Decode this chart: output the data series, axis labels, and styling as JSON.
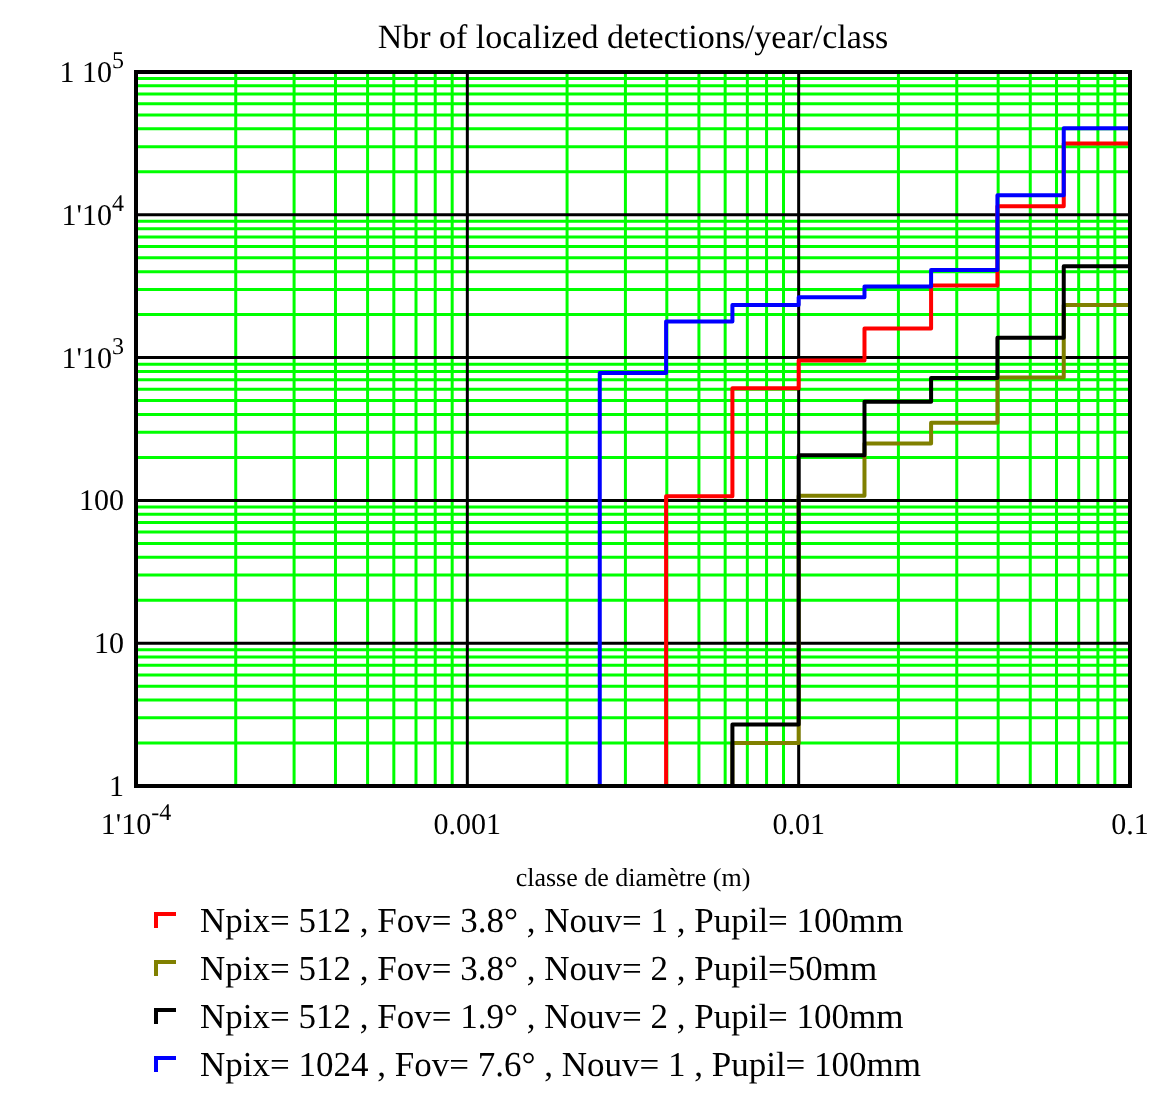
{
  "chart_data": {
    "type": "step",
    "title": "Nbr of localized detections/year/class",
    "xlabel": "classe de diamètre (m)",
    "log": "xy",
    "grid": true,
    "legend": "bottom",
    "line_style": "solid",
    "marker": "none",
    "xlim": [
      0.0001,
      0.1
    ],
    "ylim": [
      1,
      100000
    ],
    "xticks": [
      {
        "value": 0.0001,
        "label": "1'10$^{-4}$"
      },
      {
        "value": 0.0002,
        "label": null
      },
      {
        "value": 0.0003,
        "label": null
      },
      {
        "value": 0.0004,
        "label": null
      },
      {
        "value": 0.0005,
        "label": null
      },
      {
        "value": 0.0006,
        "label": null
      },
      {
        "value": 0.0007,
        "label": null
      },
      {
        "value": 0.0008,
        "label": null
      },
      {
        "value": 0.0009,
        "label": null
      },
      0.001,
      {
        "value": 0.002,
        "label": null
      },
      {
        "value": 0.003,
        "label": null
      },
      {
        "value": 0.004,
        "label": null
      },
      {
        "value": 0.005,
        "label": null
      },
      {
        "value": 0.006,
        "label": null
      },
      {
        "value": 0.007,
        "label": null
      },
      {
        "value": 0.008,
        "label": null
      },
      {
        "value": 0.009,
        "label": null
      },
      0.01,
      {
        "value": 0.02,
        "label": null
      },
      {
        "value": 0.03,
        "label": null
      },
      {
        "value": 0.04,
        "label": null
      },
      {
        "value": 0.05,
        "label": null
      },
      {
        "value": 0.06,
        "label": null
      },
      {
        "value": 0.07,
        "label": null
      },
      {
        "value": 0.08,
        "label": null
      },
      {
        "value": 0.09,
        "label": null
      },
      0.1
    ],
    "yticks": [
      1,
      {
        "value": 2,
        "label": null
      },
      {
        "value": 3,
        "label": null
      },
      {
        "value": 4,
        "label": null
      },
      {
        "value": 5,
        "label": null
      },
      {
        "value": 6,
        "label": null
      },
      {
        "value": 7,
        "label": null
      },
      {
        "value": 8,
        "label": null
      },
      {
        "value": 9,
        "label": null
      },
      10,
      {
        "value": 20,
        "label": null
      },
      {
        "value": 30,
        "label": null
      },
      {
        "value": 40,
        "label": null
      },
      {
        "value": 50,
        "label": null
      },
      {
        "value": 60,
        "label": null
      },
      {
        "value": 70,
        "label": null
      },
      {
        "value": 80,
        "label": null
      },
      {
        "value": 90,
        "label": null
      },
      100,
      {
        "value": 200,
        "label": null
      },
      {
        "value": 300,
        "label": null
      },
      {
        "value": 400,
        "label": null
      },
      {
        "value": 500,
        "label": null
      },
      {
        "value": 600,
        "label": null
      },
      {
        "value": 700,
        "label": null
      },
      {
        "value": 800,
        "label": null
      },
      {
        "value": 900,
        "label": null
      },
      {
        "value": 1000,
        "label": "1'10$^{3}$"
      },
      {
        "value": 2000,
        "label": null
      },
      {
        "value": 3000,
        "label": null
      },
      {
        "value": 4000,
        "label": null
      },
      {
        "value": 5000,
        "label": null
      },
      {
        "value": 6000,
        "label": null
      },
      {
        "value": 7000,
        "label": null
      },
      {
        "value": 8000,
        "label": null
      },
      {
        "value": 9000,
        "label": null
      },
      {
        "value": 10000,
        "label": "1'10$^{4}$"
      },
      {
        "value": 20000,
        "label": null
      },
      {
        "value": 30000,
        "label": null
      },
      {
        "value": 40000,
        "label": null
      },
      {
        "value": 50000,
        "label": null
      },
      {
        "value": 60000,
        "label": null
      },
      {
        "value": 70000,
        "label": null
      },
      {
        "value": 80000,
        "label": null
      },
      {
        "value": 90000,
        "label": null
      },
      {
        "value": 100000,
        "label": "1 10$^{5}$"
      }
    ],
    "series": [
      {
        "name": "Npix= 512 , Fov= 3.8° , Nouv= 1 , Pupil= 100mm",
        "color": "#ff0000",
        "x": [
          0.00398,
          0.00398,
          0.00631,
          0.01,
          0.0158,
          0.0251,
          0.0398,
          0.0631,
          0.1
        ],
        "values": [
          1,
          107,
          610,
          955,
          1600,
          3200,
          11500,
          31600,
          31600
        ]
      },
      {
        "name": "Npix= 512 , Fov= 3.8° , Nouv= 2 , Pupil=50mm",
        "color": "#808000",
        "x": [
          0.00631,
          0.00631,
          0.01,
          0.0158,
          0.0251,
          0.0398,
          0.0631,
          0.1
        ],
        "values": [
          1,
          2,
          108,
          250,
          350,
          725,
          2340,
          2340
        ]
      },
      {
        "name": "Npix= 512 , Fov= 1.9° , Nouv= 2 , Pupil= 100mm",
        "color": "#000000",
        "x": [
          0.00631,
          0.00631,
          0.01,
          0.0158,
          0.0251,
          0.0398,
          0.0631,
          0.1
        ],
        "values": [
          1,
          2.7,
          207,
          490,
          720,
          1380,
          4370,
          4370
        ]
      },
      {
        "name": "Npix= 1024 , Fov= 7.6° , Nouv= 1 , Pupil= 100mm",
        "color": "#0000ff",
        "x": [
          0.00251,
          0.00251,
          0.00398,
          0.00631,
          0.01,
          0.0158,
          0.0251,
          0.0398,
          0.0631,
          0.1
        ],
        "values": [
          1,
          780,
          1790,
          2340,
          2650,
          3150,
          4100,
          13700,
          40400,
          40400
        ]
      }
    ]
  }
}
